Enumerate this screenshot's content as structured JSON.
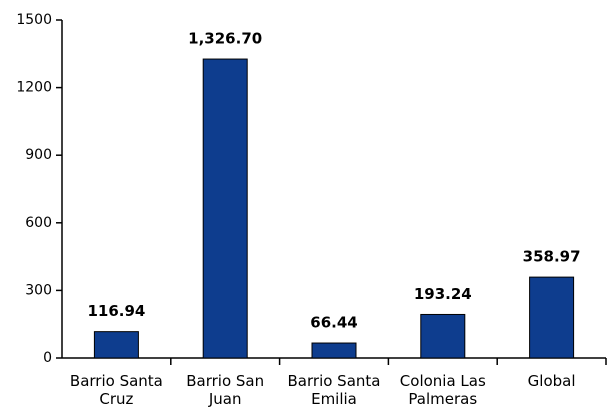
{
  "chart_data": {
    "type": "bar",
    "categories": [
      "Barrio Santa Cruz",
      "Barrio San Juan",
      "Barrio Santa Emilia",
      "Colonia Las Palmeras",
      "Global"
    ],
    "values": [
      116.94,
      1326.7,
      66.44,
      193.24,
      358.97
    ],
    "value_labels": [
      "116.94",
      "1,326.70",
      "66.44",
      "193.24",
      "358.97"
    ],
    "color": "#0e3d8e",
    "ylim": [
      0,
      1500
    ],
    "yticks": [
      0,
      300,
      600,
      900,
      1200,
      1500
    ],
    "grid": false
  }
}
